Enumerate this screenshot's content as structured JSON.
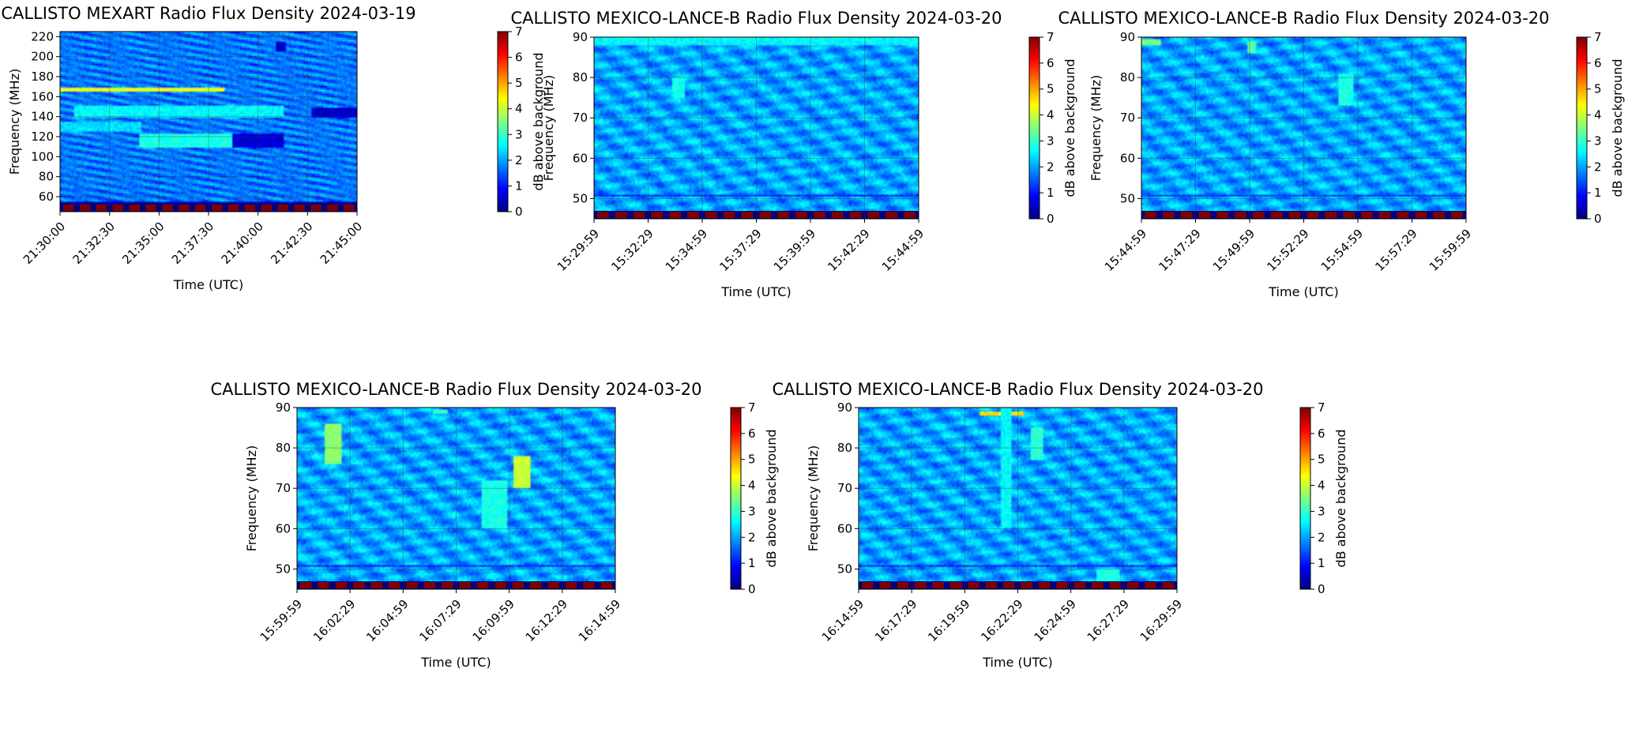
{
  "colormap": [
    "#00007f",
    "#0000ff",
    "#007fff",
    "#00ffff",
    "#7fff7f",
    "#ffff00",
    "#ff7f00",
    "#ff0000",
    "#7f0000"
  ],
  "chart_data": [
    {
      "type": "heatmap",
      "title": "CALLISTO MEXART Radio Flux Density 2024-03-19",
      "xlabel": "Time (UTC)",
      "ylabel": "Frequency (MHz)",
      "colorbar_label": "dB above background",
      "x_ticks": [
        "21:30:00",
        "21:32:30",
        "21:35:00",
        "21:37:30",
        "21:40:00",
        "21:42:30",
        "21:45:00"
      ],
      "y_ticks": [
        "60",
        "80",
        "100",
        "120",
        "140",
        "160",
        "180",
        "200",
        "220"
      ],
      "colorbar_ticks": [
        "0",
        "1",
        "2",
        "3",
        "4",
        "5",
        "6",
        "7"
      ],
      "ylim": [
        45,
        225
      ],
      "clim": [
        0,
        7
      ],
      "grid": true,
      "dominant_level": 1.7,
      "features": [
        {
          "kind": "band",
          "y": [
            110,
            122
          ],
          "t": [
            0.27,
            0.58
          ],
          "level": 2.8
        },
        {
          "kind": "band",
          "y": [
            125,
            135
          ],
          "t": [
            0.0,
            0.27
          ],
          "level": 2.4
        },
        {
          "kind": "band",
          "y": [
            140,
            150
          ],
          "t": [
            0.05,
            0.75
          ],
          "level": 2.6
        },
        {
          "kind": "band",
          "y": [
            165,
            168
          ],
          "t": [
            0.0,
            0.55
          ],
          "level": 4.2
        },
        {
          "kind": "band",
          "y": [
            110,
            122
          ],
          "t": [
            0.58,
            0.75
          ],
          "level": 0.6
        },
        {
          "kind": "band",
          "y": [
            140,
            148
          ],
          "t": [
            0.85,
            1.0
          ],
          "level": 0.5
        },
        {
          "kind": "band",
          "y": [
            50,
            55
          ],
          "t": [
            0.0,
            1.0
          ],
          "level": 0.3
        },
        {
          "kind": "band",
          "y": [
            205,
            215
          ],
          "t": [
            0.73,
            0.76
          ],
          "level": 0.5
        }
      ]
    },
    {
      "type": "heatmap",
      "title": "CALLISTO MEXICO-LANCE-B Radio Flux Density 2024-03-20",
      "xlabel": "Time (UTC)",
      "ylabel": "Frequency (MHz)",
      "colorbar_label": "dB above background",
      "x_ticks": [
        "15:29:59",
        "15:32:29",
        "15:34:59",
        "15:37:29",
        "15:39:59",
        "15:42:29",
        "15:44:59"
      ],
      "y_ticks": [
        "50",
        "60",
        "70",
        "80",
        "90"
      ],
      "colorbar_ticks": [
        "0",
        "1",
        "2",
        "3",
        "4",
        "5",
        "6",
        "7"
      ],
      "ylim": [
        45,
        90
      ],
      "clim": [
        0,
        7
      ],
      "grid": true,
      "dominant_level": 2.0,
      "features": [
        {
          "kind": "band",
          "y": [
            88,
            90
          ],
          "t": [
            0.0,
            1.0
          ],
          "level": 2.6
        },
        {
          "kind": "band",
          "y": [
            50.3,
            51
          ],
          "t": [
            0.0,
            1.0
          ],
          "level": 1.2
        },
        {
          "kind": "band",
          "y": [
            45,
            46.5
          ],
          "t": [
            0.0,
            1.0
          ],
          "level": 0.3
        },
        {
          "kind": "blob",
          "y": [
            75,
            80
          ],
          "t": [
            0.24,
            0.28
          ],
          "level": 2.7
        }
      ]
    },
    {
      "type": "heatmap",
      "title": "CALLISTO MEXICO-LANCE-B Radio Flux Density 2024-03-20",
      "xlabel": "Time (UTC)",
      "ylabel": "Frequency (MHz)",
      "colorbar_label": "dB above background",
      "x_ticks": [
        "15:44:59",
        "15:47:29",
        "15:49:59",
        "15:52:29",
        "15:54:59",
        "15:57:29",
        "15:59:59"
      ],
      "y_ticks": [
        "50",
        "60",
        "70",
        "80",
        "90"
      ],
      "colorbar_ticks": [
        "0",
        "1",
        "2",
        "3",
        "4",
        "5",
        "6",
        "7"
      ],
      "ylim": [
        45,
        90
      ],
      "clim": [
        0,
        7
      ],
      "grid": true,
      "dominant_level": 2.0,
      "features": [
        {
          "kind": "band",
          "y": [
            88,
            89.5
          ],
          "t": [
            0.0,
            0.06
          ],
          "level": 3.4
        },
        {
          "kind": "blob",
          "y": [
            86,
            89
          ],
          "t": [
            0.33,
            0.35
          ],
          "level": 3.2
        },
        {
          "kind": "blob",
          "y": [
            73,
            81
          ],
          "t": [
            0.61,
            0.65
          ],
          "level": 2.8
        },
        {
          "kind": "band",
          "y": [
            50.3,
            51
          ],
          "t": [
            0.0,
            1.0
          ],
          "level": 1.3
        },
        {
          "kind": "band",
          "y": [
            45,
            46.5
          ],
          "t": [
            0.0,
            1.0
          ],
          "level": 0.3
        }
      ]
    },
    {
      "type": "heatmap",
      "title": "CALLISTO MEXICO-LANCE-B Radio Flux Density 2024-03-20",
      "xlabel": "Time (UTC)",
      "ylabel": "Frequency (MHz)",
      "colorbar_label": "dB above background",
      "x_ticks": [
        "15:59:59",
        "16:02:29",
        "16:04:59",
        "16:07:29",
        "16:09:59",
        "16:12:29",
        "16:14:59"
      ],
      "y_ticks": [
        "50",
        "60",
        "70",
        "80",
        "90"
      ],
      "colorbar_ticks": [
        "0",
        "1",
        "2",
        "3",
        "4",
        "5",
        "6",
        "7"
      ],
      "ylim": [
        45,
        90
      ],
      "clim": [
        0,
        7
      ],
      "grid": true,
      "dominant_level": 2.0,
      "features": [
        {
          "kind": "blob",
          "y": [
            76,
            86
          ],
          "t": [
            0.09,
            0.14
          ],
          "level": 3.6
        },
        {
          "kind": "blob",
          "y": [
            70,
            78
          ],
          "t": [
            0.68,
            0.73
          ],
          "level": 4.0
        },
        {
          "kind": "blob",
          "y": [
            60,
            72
          ],
          "t": [
            0.58,
            0.66
          ],
          "level": 2.8
        },
        {
          "kind": "band",
          "y": [
            88.5,
            89.5
          ],
          "t": [
            0.43,
            0.47
          ],
          "level": 3.0
        },
        {
          "kind": "band",
          "y": [
            50.3,
            51
          ],
          "t": [
            0.0,
            1.0
          ],
          "level": 1.2
        },
        {
          "kind": "band",
          "y": [
            45,
            46.5
          ],
          "t": [
            0.0,
            1.0
          ],
          "level": 0.3
        }
      ]
    },
    {
      "type": "heatmap",
      "title": "CALLISTO MEXICO-LANCE-B Radio Flux Density 2024-03-20",
      "xlabel": "Time (UTC)",
      "ylabel": "Frequency (MHz)",
      "colorbar_label": "dB above background",
      "x_ticks": [
        "16:14:59",
        "16:17:29",
        "16:19:59",
        "16:22:29",
        "16:24:59",
        "16:27:29",
        "16:29:59"
      ],
      "y_ticks": [
        "50",
        "60",
        "70",
        "80",
        "90"
      ],
      "colorbar_ticks": [
        "0",
        "1",
        "2",
        "3",
        "4",
        "5",
        "6",
        "7"
      ],
      "ylim": [
        45,
        90
      ],
      "clim": [
        0,
        7
      ],
      "grid": true,
      "dominant_level": 2.0,
      "features": [
        {
          "kind": "band",
          "y": [
            88,
            89
          ],
          "t": [
            0.38,
            0.52
          ],
          "level": 4.6
        },
        {
          "kind": "blob",
          "y": [
            77,
            85
          ],
          "t": [
            0.54,
            0.58
          ],
          "level": 2.9
        },
        {
          "kind": "band",
          "y": [
            46.5,
            50
          ],
          "t": [
            0.75,
            0.82
          ],
          "level": 2.8
        },
        {
          "kind": "blob",
          "y": [
            60,
            90
          ],
          "t": [
            0.45,
            0.48
          ],
          "level": 2.6
        },
        {
          "kind": "band",
          "y": [
            50.3,
            51
          ],
          "t": [
            0.0,
            1.0
          ],
          "level": 1.2
        },
        {
          "kind": "band",
          "y": [
            45,
            46.5
          ],
          "t": [
            0.0,
            1.0
          ],
          "level": 0.3
        }
      ]
    }
  ]
}
